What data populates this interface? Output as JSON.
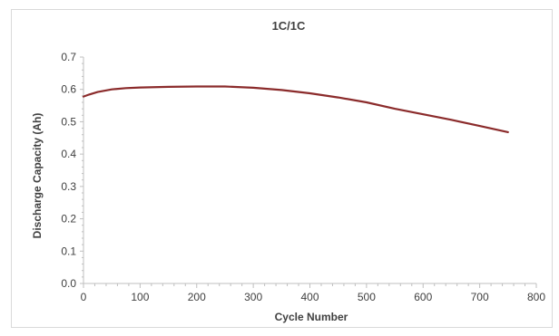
{
  "chart_data": {
    "type": "line",
    "title": "1C/1C",
    "xlabel": "Cycle Number",
    "ylabel": "Discharge Capacity (Ah)",
    "xlim": [
      0,
      800
    ],
    "ylim": [
      0.0,
      0.7
    ],
    "x_ticks": [
      "0",
      "100",
      "200",
      "300",
      "400",
      "500",
      "600",
      "700",
      "800"
    ],
    "y_ticks": [
      "0.0",
      "0.1",
      "0.2",
      "0.3",
      "0.4",
      "0.5",
      "0.6",
      "0.7"
    ],
    "grid": false,
    "legend": "none",
    "series": [
      {
        "color": "#8b2b2b",
        "x": [
          0,
          10,
          25,
          50,
          75,
          100,
          150,
          200,
          250,
          300,
          350,
          400,
          450,
          500,
          550,
          600,
          650,
          700,
          750
        ],
        "y": [
          0.578,
          0.584,
          0.592,
          0.6,
          0.604,
          0.606,
          0.608,
          0.609,
          0.609,
          0.605,
          0.598,
          0.588,
          0.575,
          0.56,
          0.54,
          0.523,
          0.506,
          0.487,
          0.468
        ]
      }
    ]
  }
}
